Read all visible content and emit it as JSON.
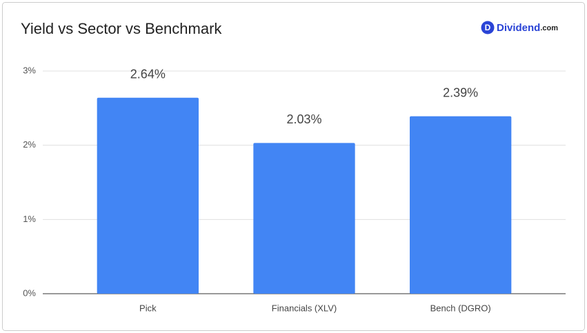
{
  "brand": {
    "mark": "D",
    "name": "Dividend",
    "suffix": ".com"
  },
  "chart_data": {
    "type": "bar",
    "title": "Yield vs Sector vs Benchmark",
    "categories": [
      "Pick",
      "Financials (XLV)",
      "Bench (DGRO)"
    ],
    "values": [
      2.64,
      2.03,
      2.39
    ],
    "value_labels": [
      "2.64%",
      "2.03%",
      "2.39%"
    ],
    "color": "#4285f4",
    "ylim": [
      0,
      3
    ],
    "yticks": [
      {
        "value": 0,
        "label": "0%"
      },
      {
        "value": 1,
        "label": "1%"
      },
      {
        "value": 2,
        "label": "2%"
      },
      {
        "value": 3,
        "label": "3%"
      }
    ],
    "grid": true
  }
}
